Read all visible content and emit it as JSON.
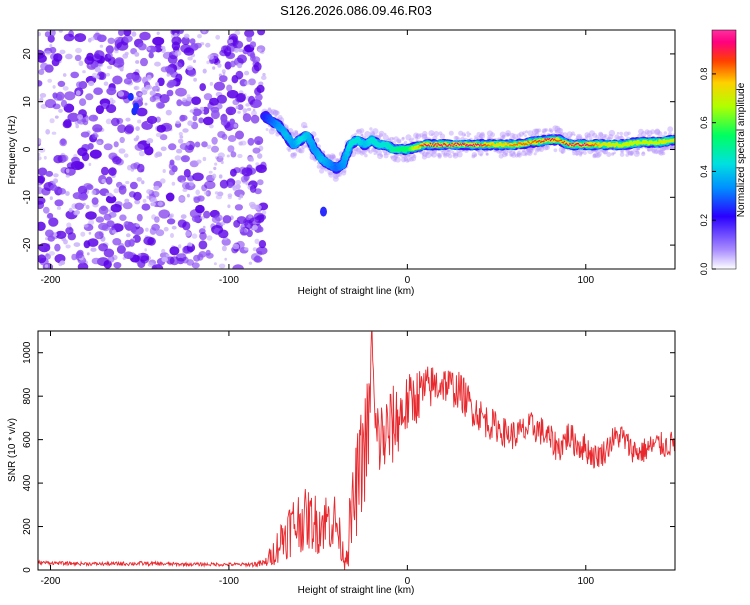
{
  "title": "S126.2026.086.09.46.R03",
  "colors": {
    "snr_line": "#e8282d",
    "axis": "#000000",
    "noise": "#9b5cf0",
    "noise_dark": "#6a00e0"
  },
  "chart_data": [
    {
      "type": "heatmap",
      "title": "S126.2026.086.09.46.R03",
      "xlabel": "Height of straight line (km)",
      "ylabel": "Frequency (Hz)",
      "xlim": [
        -207,
        150
      ],
      "ylim": [
        -25,
        25
      ],
      "xticks": [
        -200,
        -100,
        0,
        100
      ],
      "xtick_labels": [
        "-200",
        "-100",
        "0",
        "100"
      ],
      "yticks": [
        -20,
        -10,
        0,
        10,
        20
      ],
      "ytick_labels": [
        "-20",
        "-10",
        "0",
        "10",
        "20"
      ],
      "noise_region_x": [
        -207,
        -80
      ],
      "ridge": {
        "description": "frequency of the main signal track vs height",
        "x": [
          -80,
          -76,
          -72,
          -68,
          -64,
          -60,
          -56,
          -52,
          -48,
          -44,
          -40,
          -36,
          -32,
          -28,
          -24,
          -20,
          -16,
          -12,
          -8,
          -4,
          0,
          10,
          20,
          30,
          40,
          50,
          60,
          70,
          80,
          85,
          90,
          100,
          110,
          120,
          130,
          140,
          150
        ],
        "y": [
          7,
          6,
          5,
          3,
          1,
          2,
          3,
          0,
          -2,
          -3,
          -4,
          -3,
          1,
          2,
          1,
          2,
          1,
          1,
          0,
          0,
          0,
          1,
          1,
          1,
          1,
          1,
          1,
          1.5,
          2,
          2,
          1,
          1,
          1,
          1,
          1.5,
          1.5,
          2
        ],
        "amplitude": [
          0.25,
          0.3,
          0.35,
          0.4,
          0.35,
          0.45,
          0.4,
          0.35,
          0.4,
          0.35,
          0.3,
          0.35,
          0.45,
          0.45,
          0.4,
          0.45,
          0.45,
          0.45,
          0.5,
          0.55,
          0.55,
          0.95,
          0.95,
          0.95,
          0.95,
          0.75,
          0.85,
          0.85,
          0.95,
          0.85,
          0.95,
          0.95,
          0.75,
          0.7,
          0.7,
          0.7,
          0.75
        ]
      },
      "colorbar": {
        "label": "Normalized spectral amplitude",
        "range": [
          0,
          0.98
        ],
        "ticks": [
          0.0,
          0.2,
          0.4,
          0.6,
          0.8
        ],
        "tick_labels": [
          "0.0",
          "0.2",
          "0.4",
          "0.6",
          "0.8"
        ]
      }
    },
    {
      "type": "line",
      "xlabel": "Height of straight line (km)",
      "ylabel": "SNR (10 * v/v)",
      "xlim": [
        -207,
        150
      ],
      "ylim": [
        0,
        1100
      ],
      "xticks": [
        -200,
        -100,
        0,
        100
      ],
      "xtick_labels": [
        "-200",
        "-100",
        "0",
        "100"
      ],
      "yticks": [
        0,
        200,
        400,
        600,
        800,
        1000
      ],
      "ytick_labels": [
        "0",
        "200",
        "400",
        "600",
        "800",
        "1000"
      ],
      "series": [
        {
          "name": "SNR",
          "x": [
            -207,
            -190,
            -170,
            -150,
            -130,
            -110,
            -90,
            -80,
            -75,
            -70,
            -65,
            -60,
            -55,
            -50,
            -45,
            -40,
            -35,
            -33,
            -30,
            -27,
            -24,
            -21,
            -20,
            -18,
            -15,
            -12,
            -10,
            -5,
            0,
            5,
            10,
            15,
            20,
            25,
            30,
            35,
            40,
            45,
            50,
            55,
            60,
            65,
            70,
            75,
            80,
            85,
            90,
            95,
            100,
            105,
            110,
            115,
            120,
            125,
            130,
            135,
            140,
            145,
            150
          ],
          "y": [
            35,
            30,
            28,
            30,
            27,
            26,
            25,
            30,
            80,
            150,
            200,
            230,
            230,
            210,
            230,
            220,
            40,
            150,
            300,
            450,
            560,
            700,
            1090,
            620,
            600,
            620,
            640,
            700,
            760,
            800,
            830,
            850,
            860,
            840,
            820,
            760,
            720,
            680,
            660,
            630,
            620,
            640,
            660,
            640,
            600,
            560,
            620,
            580,
            560,
            520,
            540,
            600,
            620,
            560,
            540,
            560,
            580,
            570,
            590
          ],
          "jitter": [
            8,
            8,
            8,
            10,
            8,
            8,
            8,
            20,
            60,
            110,
            140,
            150,
            140,
            140,
            140,
            140,
            40,
            140,
            200,
            250,
            260,
            260,
            0,
            200,
            200,
            200,
            200,
            170,
            140,
            130,
            110,
            100,
            90,
            90,
            90,
            90,
            80,
            80,
            70,
            70,
            70,
            70,
            70,
            70,
            70,
            70,
            70,
            70,
            70,
            60,
            60,
            60,
            60,
            60,
            60,
            60,
            60,
            60,
            60
          ]
        }
      ]
    }
  ]
}
